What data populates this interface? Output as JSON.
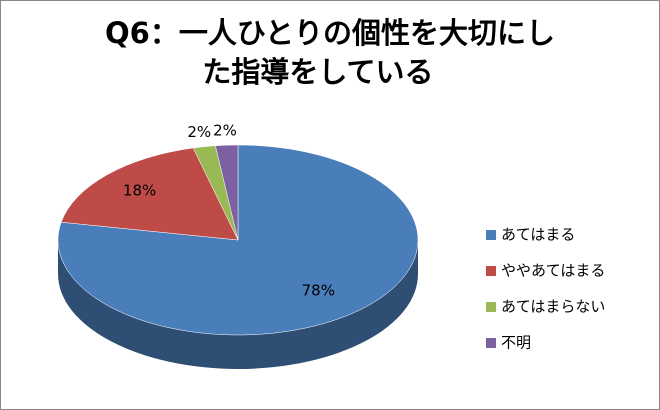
{
  "chart_data": {
    "type": "pie3d",
    "title": [
      "Q6：一人ひとりの個性を大切にし",
      "た指導をしている"
    ],
    "categories": [
      "あてはまる",
      "ややあてはまる",
      "あてはまらない",
      "不明"
    ],
    "values": [
      78,
      18,
      2,
      2
    ],
    "value_labels": [
      "78%",
      "18%",
      "2%",
      "2%"
    ],
    "colors": [
      "#4a7ebb",
      "#be4b48",
      "#98b954",
      "#7d60a0"
    ],
    "legend": "right"
  }
}
